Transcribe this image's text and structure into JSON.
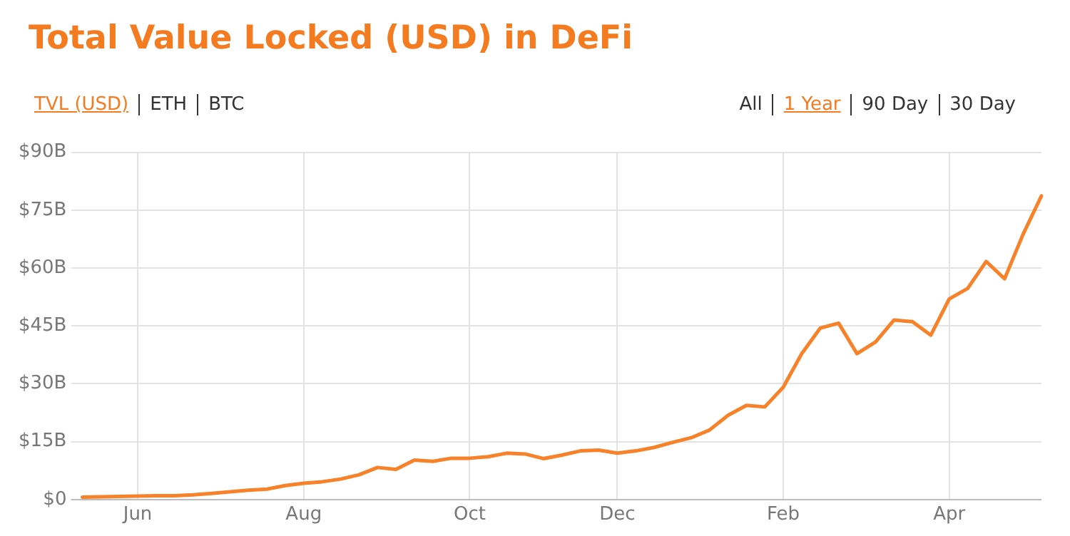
{
  "chart_data": {
    "type": "line",
    "title": "Total Value Locked (USD) in DeFi",
    "annotations": [
      "TVL (USD)",
      "ETH",
      "BTC",
      "All",
      "1 Year",
      "90 Day",
      "30 Day"
    ],
    "categories": [
      null,
      null,
      null,
      "Jun",
      null,
      null,
      null,
      null,
      null,
      null,
      null,
      null,
      "Aug",
      null,
      null,
      null,
      null,
      null,
      null,
      null,
      null,
      "Oct",
      null,
      null,
      null,
      null,
      null,
      null,
      null,
      "Dec",
      null,
      null,
      null,
      null,
      null,
      null,
      null,
      null,
      "Feb",
      null,
      null,
      null,
      null,
      null,
      null,
      null,
      null,
      "Apr",
      null,
      null,
      null,
      null,
      null
    ],
    "series": [
      {
        "color": "#f7822a",
        "values": [
          0.6,
          0.7,
          0.8,
          0.9,
          1,
          1,
          1.2,
          1.6,
          2,
          2.4,
          2.7,
          3.6,
          4.2,
          4.6,
          5.3,
          6.4,
          8.3,
          7.8,
          10.2,
          9.9,
          10.7,
          10.7,
          11.1,
          12,
          11.8,
          10.6,
          11.5,
          12.6,
          12.8,
          12,
          12.6,
          13.5,
          14.8,
          16,
          18,
          21.8,
          24.4,
          24,
          29.1,
          37.8,
          44.4,
          45.7,
          37.8,
          40.8,
          46.5,
          46.1,
          42.6,
          52,
          54.7,
          61.7,
          57.2,
          68.7,
          78.7
        ]
      }
    ],
    "ylim": [
      0,
      90
    ],
    "yticks": [
      {
        "value": 0,
        "label": "$0"
      },
      {
        "value": 15,
        "label": "$15B"
      },
      {
        "value": 30,
        "label": "$30B"
      },
      {
        "value": 45,
        "label": "$45B"
      },
      {
        "value": 60,
        "label": "$60B"
      },
      {
        "value": 75,
        "label": "$75B"
      },
      {
        "value": 90,
        "label": "$90B"
      }
    ],
    "grid": true,
    "legend": false,
    "marker": "none",
    "line_style": "solid"
  }
}
